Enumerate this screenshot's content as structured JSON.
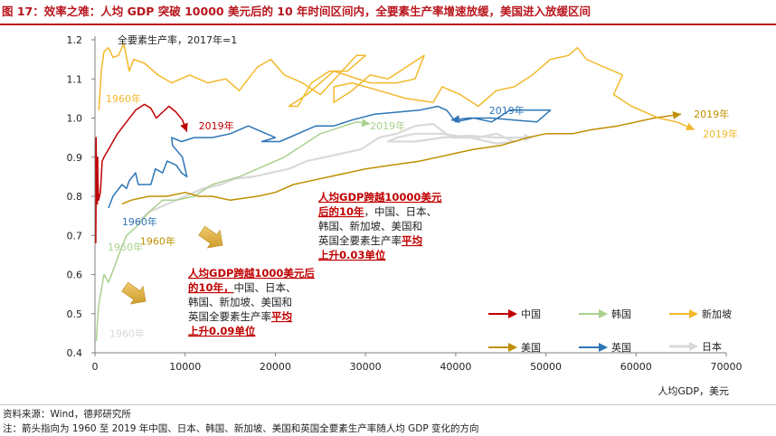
{
  "header": {
    "title": "图 17：效率之难：人均 GDP 突破 10000 美元后的 10 年时间区间内，全要素生产率增速放缓，美国进入放缓区间"
  },
  "footer": {
    "source": "资料来源：Wind，德邦研究所",
    "note": "注：箭头指向为 1960 至 2019 年中国、日本、韩国、新加坡、美国和英国全要素生产率随人均 GDP 变化的方向"
  },
  "chart_data": {
    "type": "line",
    "ylabel": "全要素生产率，2017年=1",
    "xlabel": "人均GDP，美元",
    "xlim": [
      0,
      70000
    ],
    "ylim": [
      0.4,
      1.2
    ],
    "x_ticks": [
      "0",
      "10000",
      "20000",
      "30000",
      "40000",
      "50000",
      "60000",
      "70000"
    ],
    "y_ticks": [
      "0.4",
      "0.5",
      "0.6",
      "0.7",
      "0.8",
      "0.9",
      "1.0",
      "1.1",
      "1.2"
    ],
    "grid": false,
    "legend_position": "bottom-right",
    "series": [
      {
        "name": "中国",
        "color": "#c00000",
        "points": [
          [
            90,
            0.68
          ],
          [
            120,
            0.79
          ],
          [
            100,
            0.9
          ],
          [
            130,
            0.95
          ],
          [
            160,
            0.86
          ],
          [
            190,
            0.79
          ],
          [
            200,
            0.88
          ],
          [
            220,
            0.84
          ],
          [
            260,
            0.78
          ],
          [
            300,
            0.9
          ],
          [
            320,
            0.85
          ],
          [
            400,
            0.79
          ],
          [
            600,
            0.81
          ],
          [
            800,
            0.89
          ],
          [
            1000,
            0.9
          ],
          [
            1500,
            0.92
          ],
          [
            2500,
            0.96
          ],
          [
            3500,
            0.99
          ],
          [
            4500,
            1.02
          ],
          [
            5500,
            1.035
          ],
          [
            6200,
            1.025
          ],
          [
            6800,
            1.0
          ],
          [
            7500,
            1.015
          ],
          [
            8200,
            1.03
          ],
          [
            9000,
            1.015
          ],
          [
            9700,
            0.995
          ],
          [
            10200,
            0.965
          ]
        ]
      },
      {
        "name": "韩国",
        "color": "#a9d18e",
        "points": [
          [
            150,
            0.43
          ],
          [
            250,
            0.47
          ],
          [
            400,
            0.52
          ],
          [
            700,
            0.56
          ],
          [
            1000,
            0.6
          ],
          [
            1500,
            0.58
          ],
          [
            2000,
            0.61
          ],
          [
            2800,
            0.66
          ],
          [
            3500,
            0.7
          ],
          [
            4500,
            0.72
          ],
          [
            6000,
            0.76
          ],
          [
            7500,
            0.79
          ],
          [
            9000,
            0.79
          ],
          [
            11000,
            0.8
          ],
          [
            13000,
            0.83
          ],
          [
            16000,
            0.85
          ],
          [
            19000,
            0.88
          ],
          [
            21000,
            0.9
          ],
          [
            23000,
            0.93
          ],
          [
            25000,
            0.96
          ],
          [
            27000,
            0.975
          ],
          [
            29000,
            0.99
          ],
          [
            30500,
            0.985
          ]
        ]
      },
      {
        "name": "新加坡",
        "color": "#f2b92c",
        "points": [
          [
            430,
            1.02
          ],
          [
            700,
            1.12
          ],
          [
            1000,
            1.17
          ],
          [
            1500,
            1.18
          ],
          [
            2000,
            1.155
          ],
          [
            2600,
            1.16
          ],
          [
            3200,
            1.19
          ],
          [
            3800,
            1.12
          ],
          [
            4300,
            1.15
          ],
          [
            5500,
            1.14
          ],
          [
            7000,
            1.11
          ],
          [
            8500,
            1.09
          ],
          [
            10500,
            1.11
          ],
          [
            12500,
            1.09
          ],
          [
            14500,
            1.1
          ],
          [
            16000,
            1.07
          ],
          [
            18000,
            1.13
          ],
          [
            19500,
            1.15
          ],
          [
            21000,
            1.11
          ],
          [
            23000,
            1.09
          ],
          [
            25000,
            1.06
          ],
          [
            27000,
            1.11
          ],
          [
            29000,
            1.16
          ],
          [
            30000,
            1.16
          ],
          [
            28000,
            1.12
          ],
          [
            26000,
            1.12
          ],
          [
            24000,
            1.09
          ],
          [
            22500,
            1.03
          ],
          [
            21500,
            1.03
          ],
          [
            23500,
            1.06
          ],
          [
            26500,
            1.12
          ],
          [
            30500,
            1.09
          ],
          [
            33500,
            1.09
          ],
          [
            35500,
            1.1
          ],
          [
            36500,
            1.16
          ],
          [
            34500,
            1.13
          ],
          [
            32500,
            1.1
          ],
          [
            30500,
            1.11
          ],
          [
            28500,
            1.07
          ],
          [
            26500,
            1.04
          ],
          [
            26500,
            1.08
          ],
          [
            28500,
            1.09
          ],
          [
            31500,
            1.07
          ],
          [
            34500,
            1.05
          ],
          [
            37500,
            1.04
          ],
          [
            38500,
            1.08
          ],
          [
            40500,
            1.06
          ],
          [
            42500,
            1.03
          ],
          [
            44500,
            1.07
          ],
          [
            46500,
            1.08
          ],
          [
            48500,
            1.11
          ],
          [
            50500,
            1.15
          ],
          [
            52500,
            1.16
          ],
          [
            53500,
            1.18
          ],
          [
            54500,
            1.15
          ],
          [
            55500,
            1.14
          ],
          [
            56500,
            1.13
          ],
          [
            57500,
            1.12
          ],
          [
            58500,
            1.11
          ],
          [
            57500,
            1.06
          ],
          [
            59500,
            1.03
          ],
          [
            62500,
            1.0
          ],
          [
            64500,
            0.99
          ],
          [
            66500,
            0.97
          ]
        ]
      },
      {
        "name": "美国",
        "color": "#bf8f00",
        "points": [
          [
            3000,
            0.78
          ],
          [
            4000,
            0.79
          ],
          [
            6000,
            0.8
          ],
          [
            8000,
            0.8
          ],
          [
            10000,
            0.81
          ],
          [
            11500,
            0.8
          ],
          [
            13000,
            0.8
          ],
          [
            15000,
            0.79
          ],
          [
            18000,
            0.8
          ],
          [
            20000,
            0.81
          ],
          [
            22000,
            0.83
          ],
          [
            24000,
            0.84
          ],
          [
            26000,
            0.85
          ],
          [
            28000,
            0.86
          ],
          [
            30000,
            0.87
          ],
          [
            33000,
            0.88
          ],
          [
            36000,
            0.89
          ],
          [
            38000,
            0.9
          ],
          [
            40000,
            0.91
          ],
          [
            42000,
            0.92
          ],
          [
            45000,
            0.93
          ],
          [
            48000,
            0.95
          ],
          [
            50000,
            0.96
          ],
          [
            53000,
            0.96
          ],
          [
            55000,
            0.97
          ],
          [
            58000,
            0.98
          ],
          [
            62000,
            1.0
          ],
          [
            65000,
            1.01
          ]
        ]
      },
      {
        "name": "英国",
        "color": "#2e75b6",
        "points": [
          [
            1500,
            0.77
          ],
          [
            2000,
            0.8
          ],
          [
            3000,
            0.83
          ],
          [
            3500,
            0.82
          ],
          [
            3800,
            0.84
          ],
          [
            4500,
            0.86
          ],
          [
            4800,
            0.83
          ],
          [
            6200,
            0.83
          ],
          [
            6700,
            0.87
          ],
          [
            7500,
            0.86
          ],
          [
            8000,
            0.89
          ],
          [
            9000,
            0.88
          ],
          [
            9600,
            0.86
          ],
          [
            10200,
            0.85
          ],
          [
            9700,
            0.9
          ],
          [
            8600,
            0.93
          ],
          [
            8500,
            0.95
          ],
          [
            9600,
            0.94
          ],
          [
            11000,
            0.95
          ],
          [
            13000,
            0.95
          ],
          [
            15000,
            0.96
          ],
          [
            17000,
            0.98
          ],
          [
            19000,
            0.96
          ],
          [
            20000,
            0.95
          ],
          [
            18500,
            0.94
          ],
          [
            20500,
            0.94
          ],
          [
            22500,
            0.96
          ],
          [
            24500,
            0.98
          ],
          [
            26500,
            0.98
          ],
          [
            28500,
            0.995
          ],
          [
            31000,
            1.01
          ],
          [
            36000,
            1.02
          ],
          [
            38000,
            1.03
          ],
          [
            39000,
            1.02
          ],
          [
            40000,
            0.99
          ],
          [
            42000,
            1.0
          ],
          [
            44000,
            0.99
          ],
          [
            46000,
            1.02
          ],
          [
            48500,
            1.02
          ],
          [
            50500,
            1.02
          ],
          [
            49000,
            0.99
          ],
          [
            46500,
            0.995
          ],
          [
            44000,
            1.0
          ],
          [
            41500,
            1.0
          ],
          [
            39500,
            0.995
          ]
        ]
      },
      {
        "name": "日本",
        "color": "#d9d9d9",
        "points": [
          [
            4500,
            0.73
          ],
          [
            6000,
            0.76
          ],
          [
            8000,
            0.78
          ],
          [
            10000,
            0.8
          ],
          [
            12000,
            0.82
          ],
          [
            14000,
            0.83
          ],
          [
            15500,
            0.845
          ],
          [
            17500,
            0.85
          ],
          [
            19500,
            0.86
          ],
          [
            21500,
            0.87
          ],
          [
            23500,
            0.89
          ],
          [
            25500,
            0.9
          ],
          [
            27500,
            0.91
          ],
          [
            29500,
            0.92
          ],
          [
            31500,
            0.95
          ],
          [
            33500,
            0.96
          ],
          [
            35500,
            0.98
          ],
          [
            37500,
            0.985
          ],
          [
            39500,
            0.95
          ],
          [
            42500,
            0.95
          ],
          [
            44500,
            0.96
          ],
          [
            46500,
            0.94
          ],
          [
            44500,
            0.935
          ],
          [
            41500,
            0.95
          ],
          [
            38500,
            0.96
          ],
          [
            35500,
            0.96
          ],
          [
            33500,
            0.95
          ],
          [
            32500,
            0.94
          ],
          [
            35500,
            0.94
          ],
          [
            38500,
            0.95
          ],
          [
            41500,
            0.955
          ],
          [
            44500,
            0.95
          ],
          [
            47500,
            0.95
          ],
          [
            48500,
            0.95
          ]
        ]
      }
    ],
    "point_labels": [
      {
        "text": "1960年",
        "series": "新加坡",
        "x": 1200,
        "y": 1.05
      },
      {
        "text": "1960年",
        "series": "英国",
        "x": 3000,
        "y": 0.735
      },
      {
        "text": "1960年",
        "series": "美国",
        "x": 5000,
        "y": 0.685
      },
      {
        "text": "1960年",
        "series": "韩国",
        "x": 1400,
        "y": 0.67
      },
      {
        "text": "1960年",
        "series": "日本",
        "x": 1600,
        "y": 0.45
      },
      {
        "text": "2019年",
        "series": "中国",
        "x": 11500,
        "y": 0.98
      },
      {
        "text": "2019年",
        "series": "韩国",
        "x": 30500,
        "y": 0.98
      },
      {
        "text": "2019年",
        "series": "英国",
        "x": 43700,
        "y": 1.02
      },
      {
        "text": "2019年",
        "series": "美国",
        "x": 66400,
        "y": 1.01
      },
      {
        "text": "2019年",
        "series": "新加坡",
        "x": 67400,
        "y": 0.96
      }
    ],
    "annotations": [
      {
        "id": "anno-10000",
        "lines": [
          [
            {
              "t": "人均GDP跨越10000美元",
              "hl": true
            }
          ],
          [
            {
              "t": "后的10年",
              "hl": true
            },
            {
              "t": "，中国、日本、",
              "hl": false
            }
          ],
          [
            {
              "t": "韩国、新加坡、美国和",
              "hl": false
            }
          ],
          [
            {
              "t": "英国全要素生产率",
              "hl": false
            },
            {
              "t": "平均",
              "hl": true
            }
          ],
          [
            {
              "t": "上升0.03单位",
              "hl": true
            }
          ]
        ]
      },
      {
        "id": "anno-1000",
        "lines": [
          [
            {
              "t": "人均GDP跨越1000美元后",
              "hl": true
            }
          ],
          [
            {
              "t": "的10年，",
              "hl": true
            },
            {
              "t": "中国、日本、",
              "hl": false
            }
          ],
          [
            {
              "t": "韩国、新加坡、美国和",
              "hl": false
            }
          ],
          [
            {
              "t": "英国全要素生产率",
              "hl": false
            },
            {
              "t": "平均",
              "hl": true
            }
          ],
          [
            {
              "t": "上升0.09单位",
              "hl": true
            }
          ]
        ]
      }
    ]
  }
}
